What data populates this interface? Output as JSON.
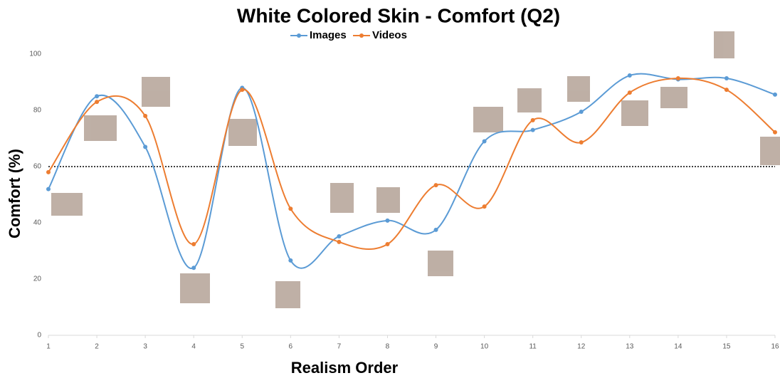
{
  "chart_data": {
    "type": "line",
    "title": "White Colored Skin - Comfort (Q2)",
    "x_label": "Realism Order",
    "y_label": "Comfort (%)",
    "x": [
      1,
      2,
      3,
      4,
      5,
      6,
      7,
      8,
      9,
      10,
      11,
      12,
      13,
      14,
      15,
      16
    ],
    "xlim": [
      1,
      16
    ],
    "xticks": [
      1,
      2,
      3,
      4,
      5,
      6,
      7,
      8,
      9,
      10,
      11,
      12,
      13,
      14,
      15,
      16
    ],
    "ylim": [
      0,
      100
    ],
    "yticks": [
      0,
      20,
      40,
      60,
      80,
      100
    ],
    "reference_line": 60,
    "smooth": true,
    "legend": "top",
    "series": [
      {
        "name": "Images",
        "color": "#5b9bd5",
        "values": [
          52,
          85,
          67,
          24,
          88,
          26.6,
          35.2,
          40.8,
          37.5,
          69,
          73,
          79.5,
          92.4,
          91,
          91.4,
          85.6
        ]
      },
      {
        "name": "Videos",
        "color": "#ed7d31",
        "values": [
          58,
          83,
          78,
          32.4,
          87.3,
          45,
          33.2,
          32.4,
          53.4,
          45.8,
          76.5,
          68.6,
          86.3,
          91.4,
          87.3,
          72.2
        ]
      }
    ]
  }
}
